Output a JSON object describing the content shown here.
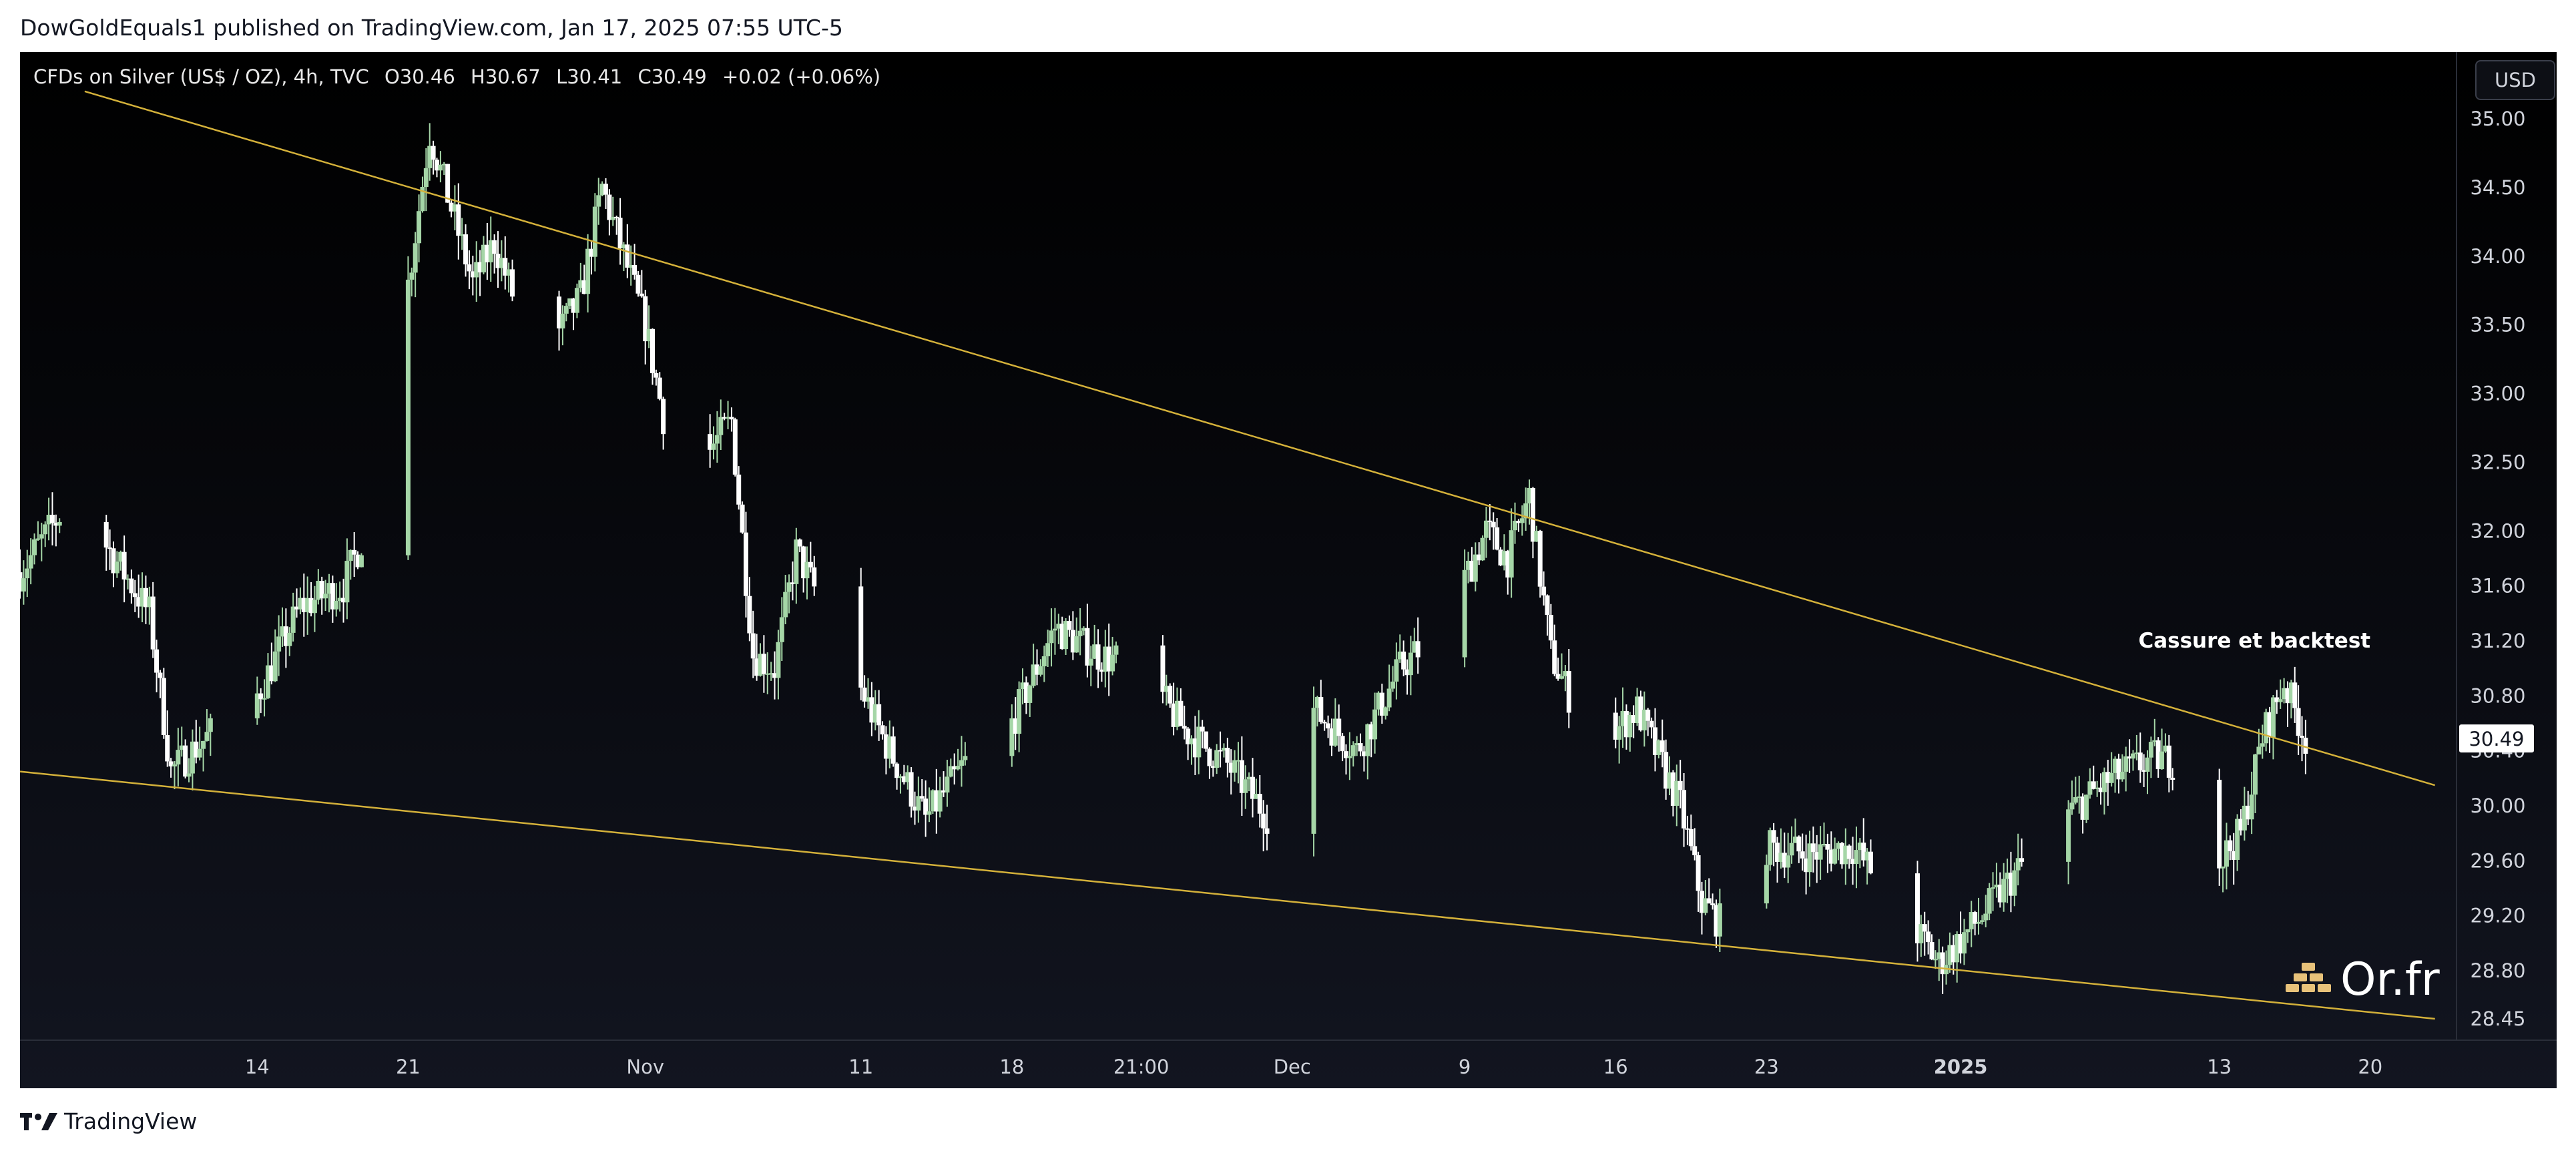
{
  "header": {
    "caption": "DowGoldEquals1 published on TradingView.com, Jan 17, 2025 07:55 UTC-5"
  },
  "legend": {
    "symbol": "CFDs on Silver (US$ / OZ), 4h, TVC",
    "open": "O30.46",
    "high": "H30.67",
    "low": "L30.41",
    "close": "C30.49",
    "change": "+0.02 (+0.06%)"
  },
  "currency_button": "USD",
  "footer": {
    "brand": "TradingView",
    "logo_icon": "tradingview-logo-icon"
  },
  "watermark": {
    "text": "Or.fr",
    "icon": "gold-bars-icon"
  },
  "colors": {
    "up": "#a5d6a7",
    "down": "#ffffff",
    "trendline": "#d4b13a",
    "axis_text": "#d1d4dc",
    "price_tag_bg": "#ffffff"
  },
  "chart_data": {
    "type": "candlestick",
    "symbol": "CFDs on Silver (US$ / OZ)",
    "timeframe": "4h",
    "ylim": [
      28.3,
      35.3
    ],
    "xlim": [
      "2024-10-03",
      "2025-01-24"
    ],
    "y_ticks": [
      "35.00",
      "34.50",
      "34.00",
      "33.50",
      "33.00",
      "32.50",
      "32.00",
      "31.60",
      "31.20",
      "30.80",
      "30.40",
      "30.00",
      "29.60",
      "29.20",
      "28.80",
      "28.45"
    ],
    "y_tick_values": [
      35.0,
      34.5,
      34.0,
      33.5,
      33.0,
      32.5,
      32.0,
      31.6,
      31.2,
      30.8,
      30.4,
      30.0,
      29.6,
      29.2,
      28.8,
      28.45
    ],
    "x_ticks": [
      {
        "label": "14",
        "date": "2024-10-14",
        "bold": false
      },
      {
        "label": "21",
        "date": "2024-10-21",
        "bold": false
      },
      {
        "label": "Nov",
        "date": "2024-11-01",
        "bold": false
      },
      {
        "label": "11",
        "date": "2024-11-11",
        "bold": false
      },
      {
        "label": "18",
        "date": "2024-11-18",
        "bold": false
      },
      {
        "label": "21:00",
        "date": "2024-11-24",
        "bold": false
      },
      {
        "label": "Dec",
        "date": "2024-12-01",
        "bold": false
      },
      {
        "label": "9",
        "date": "2024-12-09",
        "bold": false
      },
      {
        "label": "16",
        "date": "2024-12-16",
        "bold": false
      },
      {
        "label": "23",
        "date": "2024-12-23",
        "bold": false
      },
      {
        "label": "2025",
        "date": "2025-01-01",
        "bold": true
      },
      {
        "label": "13",
        "date": "2025-01-13",
        "bold": false
      },
      {
        "label": "20",
        "date": "2025-01-20",
        "bold": false
      }
    ],
    "last_price": "30.49",
    "last_price_value": 30.49,
    "trendlines": [
      {
        "name": "upper",
        "from": {
          "date": "2024-10-06",
          "price": 35.2
        },
        "to": {
          "date": "2025-01-23",
          "price": 30.15
        }
      },
      {
        "name": "lower",
        "from": {
          "date": "2024-10-03",
          "price": 30.25
        },
        "to": {
          "date": "2025-01-23",
          "price": 28.45
        }
      }
    ],
    "annotations": [
      {
        "text": "Cassure et backtest",
        "date": "2025-01-15",
        "price": 31.2
      }
    ],
    "price_path": [
      [
        "2024-10-03",
        31.7
      ],
      [
        "2024-10-05",
        32.15
      ],
      [
        "2024-10-07",
        31.9
      ],
      [
        "2024-10-09",
        31.4
      ],
      [
        "2024-10-10",
        30.25
      ],
      [
        "2024-10-12",
        30.55
      ],
      [
        "2024-10-14",
        30.8
      ],
      [
        "2024-10-16",
        31.45
      ],
      [
        "2024-10-18",
        31.6
      ],
      [
        "2024-10-19",
        32.0
      ],
      [
        "2024-10-20",
        32.7
      ],
      [
        "2024-10-21",
        33.8
      ],
      [
        "2024-10-22",
        34.9
      ],
      [
        "2024-10-24",
        33.8
      ],
      [
        "2024-10-25",
        34.1
      ],
      [
        "2024-10-27",
        33.2
      ],
      [
        "2024-10-29",
        33.7
      ],
      [
        "2024-10-30",
        34.5
      ],
      [
        "2024-11-01",
        33.5
      ],
      [
        "2024-11-02",
        32.7
      ],
      [
        "2024-11-04",
        32.6
      ],
      [
        "2024-11-05",
        32.8
      ],
      [
        "2024-11-06",
        31.1
      ],
      [
        "2024-11-07",
        31.0
      ],
      [
        "2024-11-08",
        31.85
      ],
      [
        "2024-11-10",
        31.2
      ],
      [
        "2024-11-12",
        30.5
      ],
      [
        "2024-11-14",
        29.9
      ],
      [
        "2024-11-16",
        30.35
      ],
      [
        "2024-11-18",
        30.6
      ],
      [
        "2024-11-20",
        31.3
      ],
      [
        "2024-11-22",
        31.1
      ],
      [
        "2024-11-24",
        31.0
      ],
      [
        "2024-11-26",
        30.55
      ],
      [
        "2024-11-28",
        30.3
      ],
      [
        "2024-11-30",
        29.9
      ],
      [
        "2024-12-02",
        30.7
      ],
      [
        "2024-12-04",
        30.4
      ],
      [
        "2024-12-06",
        31.0
      ],
      [
        "2024-12-08",
        31.3
      ],
      [
        "2024-12-10",
        32.0
      ],
      [
        "2024-12-11",
        31.8
      ],
      [
        "2024-12-12",
        32.25
      ],
      [
        "2024-12-13",
        31.1
      ],
      [
        "2024-12-15",
        30.4
      ],
      [
        "2024-12-17",
        30.7
      ],
      [
        "2024-12-19",
        30.0
      ],
      [
        "2024-12-20",
        29.3
      ],
      [
        "2024-12-22",
        28.95
      ],
      [
        "2024-12-23",
        29.7
      ],
      [
        "2024-12-25",
        29.65
      ],
      [
        "2024-12-27",
        29.7
      ],
      [
        "2024-12-29",
        29.3
      ],
      [
        "2024-12-31",
        28.85
      ],
      [
        "2025-01-02",
        29.2
      ],
      [
        "2025-01-04",
        29.6
      ],
      [
        "2025-01-06",
        29.95
      ],
      [
        "2025-01-08",
        30.2
      ],
      [
        "2025-01-10",
        30.35
      ],
      [
        "2025-01-12",
        30.3
      ],
      [
        "2025-01-13",
        29.6
      ],
      [
        "2025-01-14",
        29.8
      ],
      [
        "2025-01-15",
        30.5
      ],
      [
        "2025-01-16",
        30.9
      ],
      [
        "2025-01-17",
        30.49
      ]
    ]
  }
}
